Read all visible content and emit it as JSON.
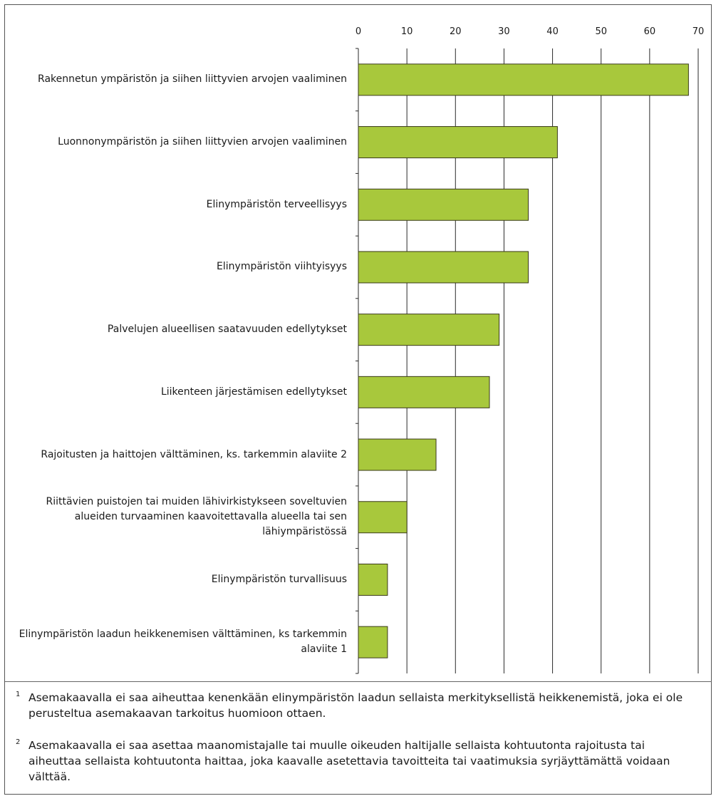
{
  "chart_data": {
    "type": "bar",
    "orientation": "horizontal",
    "categories": [
      "Rakennetun ympäristön ja siihen liittyvien arvojen vaaliminen",
      "Luonnonympäristön ja siihen liittyvien arvojen vaaliminen",
      "Elinympäristön terveellisyys",
      "Elinympäristön viihtyisyys",
      "Palvelujen alueellisen saatavuuden edellytykset",
      "Liikenteen järjestämisen edellytykset",
      "Rajoitusten ja haittojen välttäminen, ks. tarkemmin alaviite 2",
      "Riittävien puistojen tai muiden lähivirkistykseen soveltuvien alueiden turvaaminen kaavoitettavalla alueella tai sen lähiympäristössä",
      "Elinympäristön turvallisuus",
      "Elinympäristön laadun heikkenemisen välttäminen, ks tarkemmin alaviite 1"
    ],
    "values": [
      68,
      41,
      35,
      35,
      29,
      27,
      16,
      10,
      6,
      6
    ],
    "xlim": [
      0,
      70
    ],
    "xticks": [
      0,
      10,
      20,
      30,
      40,
      50,
      60,
      70
    ],
    "axis_position": "top",
    "grid": true,
    "bar_color": "#a8c83c",
    "bar_edge_color": "#3a3a1a",
    "title": "",
    "xlabel": "",
    "ylabel": ""
  },
  "footnotes": [
    {
      "num": "1",
      "text": "Asemakaavalla ei saa aiheuttaa kenenkään elinympäristön laadun sellaista merkityksellistä heikkenemistä, joka ei ole perusteltua asemakaavan tarkoitus huomioon ottaen."
    },
    {
      "num": "2",
      "text": "Asemakaavalla ei saa asettaa maanomistajalle tai muulle oikeuden haltijalle sellaista kohtuutonta rajoitusta tai aiheuttaa sellaista kohtuutonta haittaa, joka kaavalle asetettavia tavoitteita tai vaatimuksia syrjäyttämättä voidaan välttää."
    }
  ]
}
